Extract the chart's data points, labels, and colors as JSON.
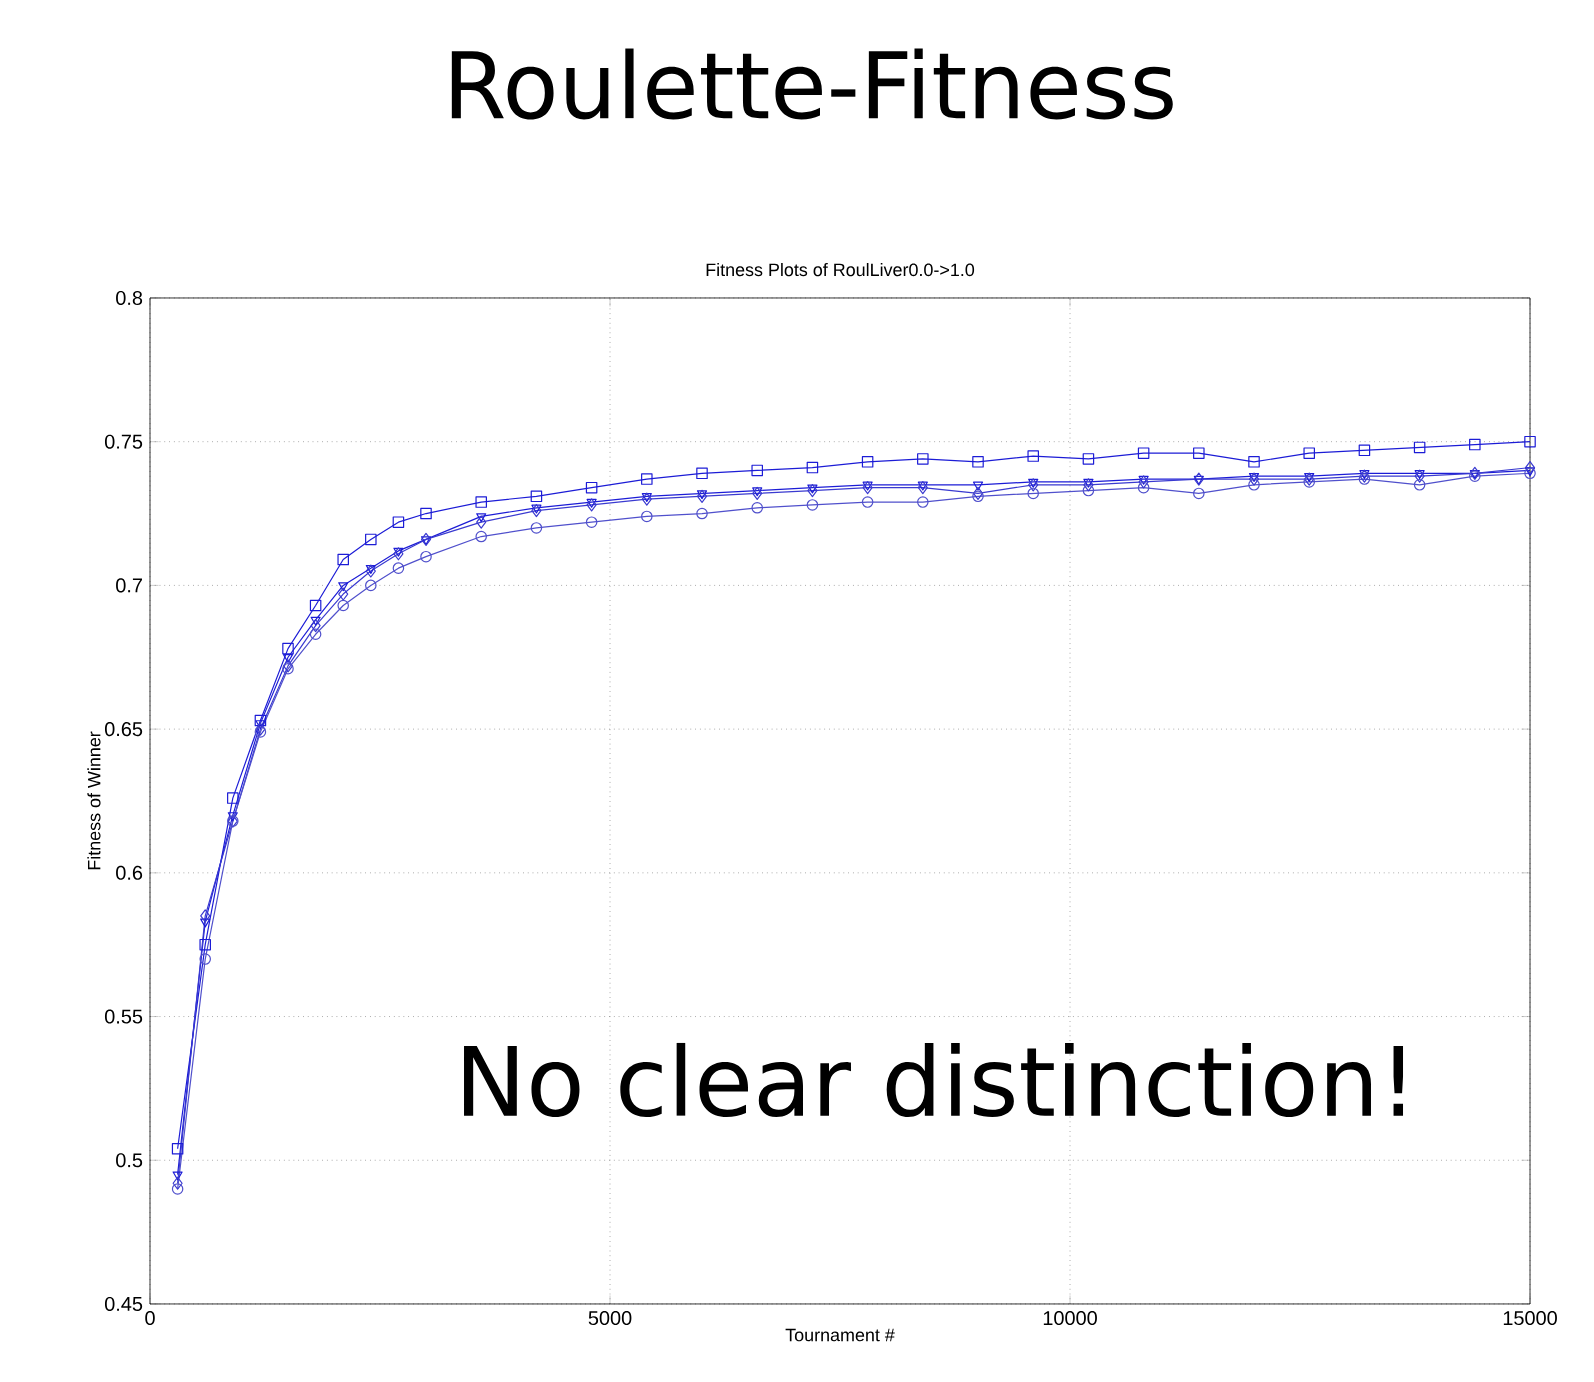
{
  "chart_data": {
    "type": "line",
    "title": "Roulette-Fitness",
    "subtitle": "Fitness Plots of RoulLiver0.0->1.0",
    "xlabel": "Tournament #",
    "ylabel": "Fitness of Winner",
    "annotations": [
      "No clear distinction!"
    ],
    "x": [
      300,
      600,
      900,
      1200,
      1500,
      1800,
      2100,
      2400,
      2700,
      3000,
      3600,
      4200,
      4800,
      5400,
      6000,
      6600,
      7200,
      7800,
      8400,
      9000,
      9600,
      10200,
      10800,
      11400,
      12000,
      12600,
      13200,
      13800,
      14400,
      15000
    ],
    "series": [
      {
        "color": "#1c1cd6",
        "marker": "square",
        "values": [
          0.504,
          0.575,
          0.626,
          0.653,
          0.678,
          0.693,
          0.709,
          0.716,
          0.722,
          0.725,
          0.729,
          0.731,
          0.734,
          0.737,
          0.739,
          0.74,
          0.741,
          0.743,
          0.744,
          0.743,
          0.745,
          0.744,
          0.746,
          0.746,
          0.743,
          0.746,
          0.747,
          0.748,
          0.749,
          0.75
        ]
      },
      {
        "color": "#1c1cd6",
        "marker": "triangle",
        "values": [
          0.495,
          0.583,
          0.62,
          0.652,
          0.675,
          0.688,
          0.7,
          0.706,
          0.712,
          0.716,
          0.724,
          0.727,
          0.729,
          0.731,
          0.732,
          0.733,
          0.734,
          0.735,
          0.735,
          0.735,
          0.736,
          0.736,
          0.737,
          0.737,
          0.738,
          0.738,
          0.739,
          0.739,
          0.739,
          0.74
        ]
      },
      {
        "color": "#3a3ad0",
        "marker": "diamond",
        "values": [
          0.492,
          0.585,
          0.618,
          0.65,
          0.672,
          0.686,
          0.697,
          0.705,
          0.711,
          0.716,
          0.722,
          0.726,
          0.728,
          0.73,
          0.731,
          0.732,
          0.733,
          0.734,
          0.734,
          0.732,
          0.735,
          0.735,
          0.736,
          0.737,
          0.737,
          0.737,
          0.738,
          0.738,
          0.739,
          0.741
        ]
      },
      {
        "color": "#5050cc",
        "marker": "circle",
        "values": [
          0.49,
          0.57,
          0.618,
          0.649,
          0.671,
          0.683,
          0.693,
          0.7,
          0.706,
          0.71,
          0.717,
          0.72,
          0.722,
          0.724,
          0.725,
          0.727,
          0.728,
          0.729,
          0.729,
          0.731,
          0.732,
          0.733,
          0.734,
          0.732,
          0.735,
          0.736,
          0.737,
          0.735,
          0.738,
          0.739
        ]
      }
    ],
    "xlim": [
      0,
      15000
    ],
    "ylim": [
      0.45,
      0.8
    ],
    "xticks": [
      0,
      5000,
      10000,
      15000
    ],
    "yticks": [
      0.45,
      0.5,
      0.55,
      0.6,
      0.65,
      0.7,
      0.75,
      0.8
    ],
    "grid": true,
    "line_style": "solid"
  }
}
